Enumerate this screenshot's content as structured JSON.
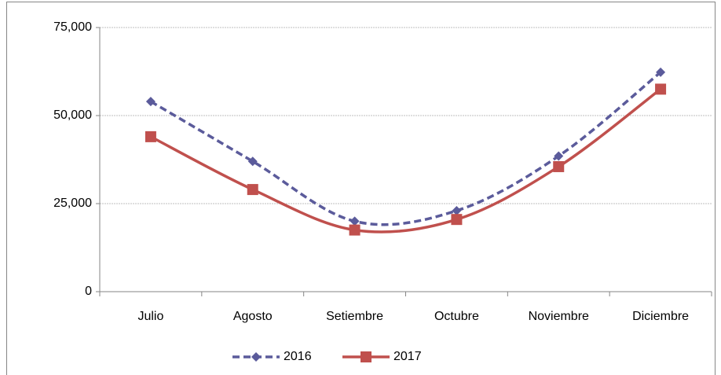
{
  "chart_data": {
    "type": "line",
    "categories": [
      "Julio",
      "Agosto",
      "Setiembre",
      "Octubre",
      "Noviembre",
      "Diciembre"
    ],
    "series": [
      {
        "name": "2016",
        "color": "#5b5b9b",
        "dashed": true,
        "marker": "diamond",
        "values": [
          54000,
          37000,
          20000,
          23000,
          38500,
          62300
        ]
      },
      {
        "name": "2017",
        "color": "#c0504d",
        "dashed": false,
        "marker": "square",
        "values": [
          44000,
          29000,
          17500,
          20500,
          35500,
          57500
        ]
      }
    ],
    "ylim": [
      0,
      75000
    ],
    "yticks": [
      {
        "value": 0,
        "label": "0"
      },
      {
        "value": 25000,
        "label": "25,000"
      },
      {
        "value": 50000,
        "label": "50,000"
      },
      {
        "value": 75000,
        "label": "75,000"
      }
    ],
    "grid": true,
    "smooth": true,
    "legend": "bottom"
  }
}
